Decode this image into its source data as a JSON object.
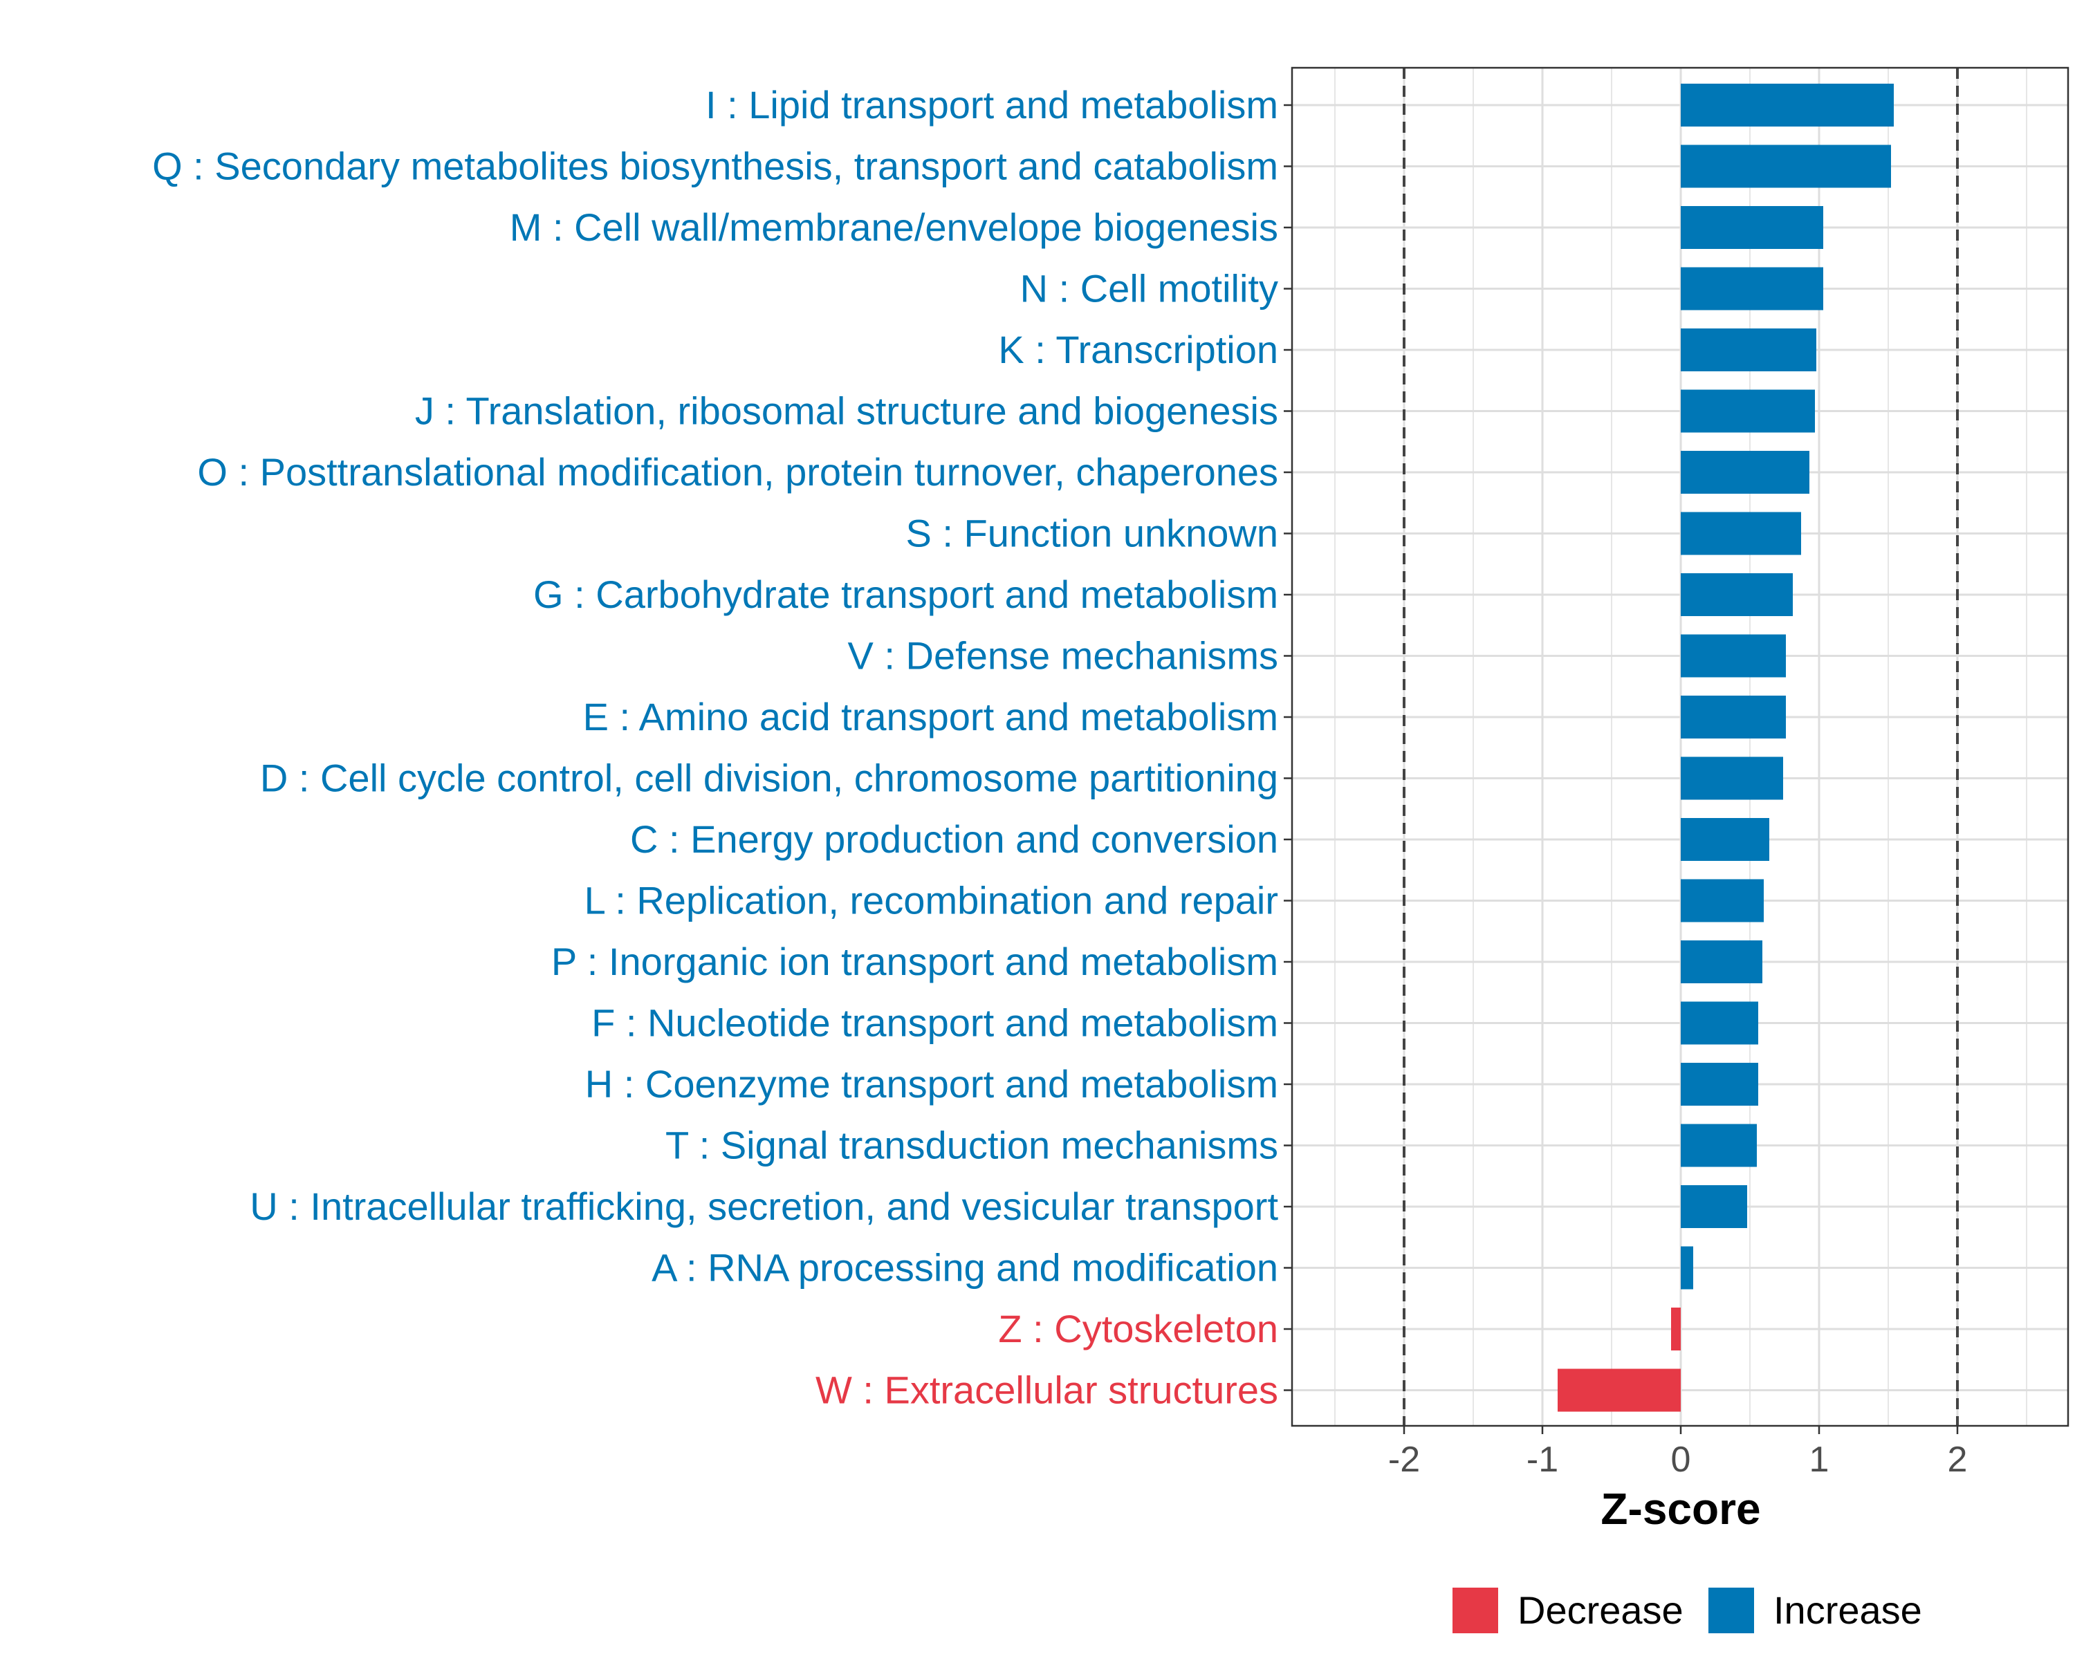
{
  "chart_data": {
    "type": "bar",
    "orientation": "horizontal",
    "xlabel": "Z-score",
    "xlim": [
      -2.8,
      2.8
    ],
    "xticks": [
      -2,
      -1,
      0,
      1,
      2
    ],
    "xtick_labels": [
      "-2",
      "-1",
      "0",
      "1",
      "2"
    ],
    "reference_lines": [
      -2,
      2
    ],
    "grid": true,
    "legend_position": "bottom",
    "colors": {
      "Decrease": "#e63946",
      "Increase": "#0077b6"
    },
    "legend": [
      {
        "label": "Decrease",
        "color": "#e63946"
      },
      {
        "label": "Increase",
        "color": "#0077b6"
      }
    ],
    "categories": [
      "I : Lipid transport and metabolism",
      "Q : Secondary metabolites biosynthesis, transport and catabolism",
      "M : Cell wall/membrane/envelope biogenesis",
      "N : Cell motility",
      "K : Transcription",
      "J : Translation, ribosomal structure and biogenesis",
      "O : Posttranslational modification, protein turnover, chaperones",
      "S : Function unknown",
      "G : Carbohydrate transport and metabolism",
      "V : Defense mechanisms",
      "E : Amino acid transport and metabolism",
      "D : Cell cycle control, cell division, chromosome partitioning",
      "C : Energy production and conversion",
      "L : Replication, recombination and repair",
      "P : Inorganic ion transport and metabolism",
      "F : Nucleotide transport and metabolism",
      "H : Coenzyme transport and metabolism",
      "T : Signal transduction mechanisms",
      "U : Intracellular trafficking, secretion, and vesicular transport",
      "A : RNA processing and modification",
      "Z : Cytoskeleton",
      "W : Extracellular structures"
    ],
    "values": [
      1.54,
      1.52,
      1.03,
      1.03,
      0.98,
      0.97,
      0.93,
      0.87,
      0.81,
      0.76,
      0.76,
      0.74,
      0.64,
      0.6,
      0.59,
      0.56,
      0.56,
      0.55,
      0.48,
      0.09,
      -0.07,
      -0.89
    ],
    "direction": [
      "Increase",
      "Increase",
      "Increase",
      "Increase",
      "Increase",
      "Increase",
      "Increase",
      "Increase",
      "Increase",
      "Increase",
      "Increase",
      "Increase",
      "Increase",
      "Increase",
      "Increase",
      "Increase",
      "Increase",
      "Increase",
      "Increase",
      "Increase",
      "Decrease",
      "Decrease"
    ]
  }
}
